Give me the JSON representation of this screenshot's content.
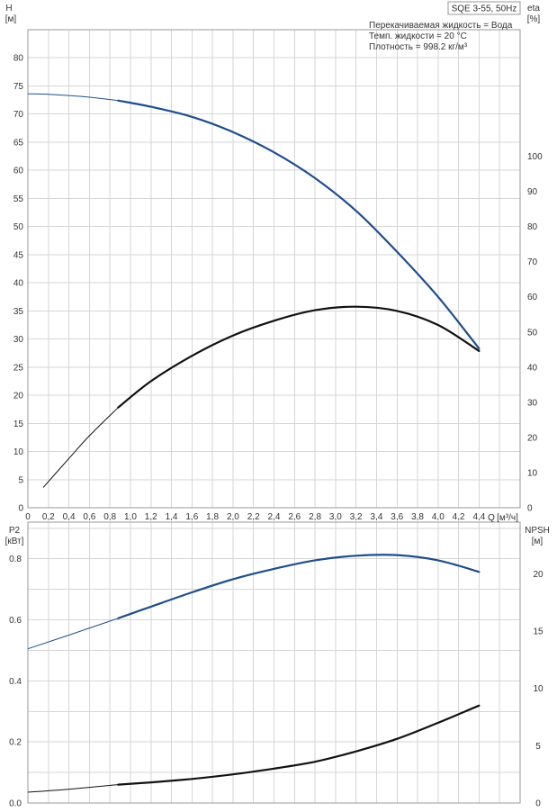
{
  "title_box": "SQE 3-55, 50Hz",
  "fluid_info": [
    "Перекачиваемая жидкость = Вода",
    "Темп. жидкости = 20 °C",
    "Плотность = 998.2 кг/м³"
  ],
  "colors": {
    "blue": "#1f4e8c",
    "black": "#111111"
  },
  "top": {
    "left_axis": {
      "label": "H",
      "unit": "[м]",
      "ticks": [
        0,
        5,
        10,
        15,
        20,
        25,
        30,
        35,
        40,
        45,
        50,
        55,
        60,
        65,
        70,
        75,
        80
      ]
    },
    "right_axis": {
      "label": "eta",
      "unit": "[%]",
      "ticks": [
        0,
        10,
        20,
        30,
        40,
        50,
        60,
        70,
        80,
        90,
        100
      ]
    }
  },
  "x_axis": {
    "labels": [
      "0",
      "0,2",
      "0,4",
      "0,6",
      "0,8",
      "1,0",
      "1,2",
      "1,4",
      "1,6",
      "1,8",
      "2,0",
      "2,2",
      "2,4",
      "2,6",
      "2,8",
      "3,0",
      "3,2",
      "3,4",
      "3,6",
      "3,8",
      "4,0",
      "4,2",
      "4,4"
    ],
    "q_label": "Q",
    "unit": "[м³/ч]"
  },
  "bottom": {
    "left_axis": {
      "label": "P2",
      "unit": "[кВт]",
      "ticks": [
        "0.0",
        "0.2",
        "0.4",
        "0.6",
        "0.8"
      ]
    },
    "right_axis": {
      "label": "NPSH",
      "unit": "[м]",
      "ticks": [
        "0",
        "5",
        "10",
        "15",
        "20"
      ]
    }
  },
  "chart_data": [
    {
      "type": "line",
      "ylabel": "H [м]",
      "y2label": "eta [%]",
      "xlabel": "Q [м³/ч]",
      "xlim": [
        0,
        4.8
      ],
      "ylim": [
        0,
        85
      ],
      "y2lim": [
        0,
        136
      ],
      "series": [
        {
          "axis": "left",
          "x": [
            0,
            0.2,
            0.4,
            0.6,
            0.88,
            1.2,
            1.6,
            2.0,
            2.4,
            2.8,
            3.2,
            3.6,
            4.0,
            4.4
          ],
          "y": [
            73.6,
            73.5,
            73.3,
            73.0,
            72.4,
            71.3,
            69.5,
            66.8,
            63.2,
            58.6,
            52.8,
            45.5,
            37.5,
            28.3
          ]
        },
        {
          "axis": "right",
          "x": [
            0.15,
            0.4,
            0.6,
            0.88,
            1.2,
            1.6,
            2.0,
            2.4,
            2.8,
            3.2,
            3.6,
            4.0,
            4.4
          ],
          "y": [
            5.8,
            14.0,
            20.5,
            28.5,
            36.0,
            43.2,
            49.0,
            53.2,
            56.2,
            57.2,
            56.0,
            52.0,
            44.6
          ]
        }
      ]
    },
    {
      "type": "line",
      "ylabel": "P2 [кВт]",
      "y2label": "NPSH [м]",
      "xlabel": "Q [м³/ч]",
      "xlim": [
        0,
        4.8
      ],
      "ylim": [
        0,
        0.8
      ],
      "y2lim": [
        0,
        21.3
      ],
      "series": [
        {
          "axis": "left",
          "x": [
            0,
            0.4,
            0.88,
            1.2,
            1.6,
            2.0,
            2.4,
            2.8,
            3.2,
            3.6,
            4.0,
            4.4
          ],
          "y": [
            0.505,
            0.55,
            0.605,
            0.643,
            0.69,
            0.733,
            0.767,
            0.795,
            0.81,
            0.812,
            0.795,
            0.757
          ]
        },
        {
          "axis": "right",
          "x": [
            0,
            0.4,
            0.88,
            1.2,
            1.6,
            2.0,
            2.4,
            2.8,
            3.2,
            3.6,
            4.0,
            4.4
          ],
          "y": [
            0.95,
            1.2,
            1.6,
            1.8,
            2.1,
            2.5,
            3.0,
            3.6,
            4.5,
            5.6,
            7.0,
            8.5
          ]
        }
      ]
    }
  ]
}
